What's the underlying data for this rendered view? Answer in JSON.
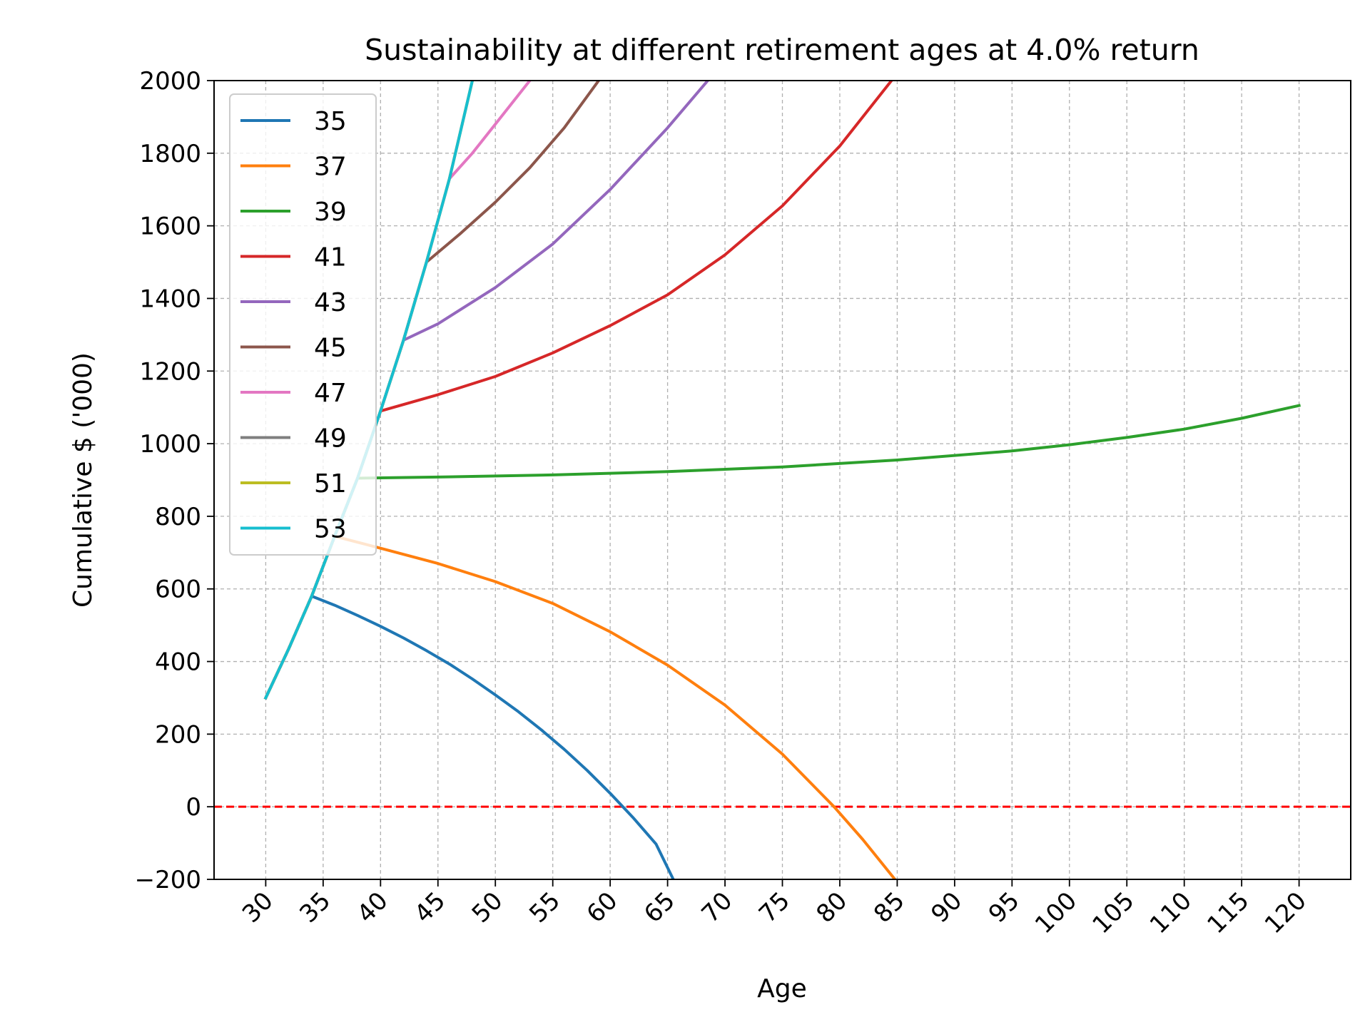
{
  "chart_data": {
    "type": "line",
    "title": "Sustainability at different retirement ages at 4.0% return",
    "xlabel": "Age",
    "ylabel": "Cumulative $ ('000)",
    "xlim": [
      25.5,
      124.5
    ],
    "ylim": [
      -200,
      2000
    ],
    "xticks": [
      30,
      35,
      40,
      45,
      50,
      55,
      60,
      65,
      70,
      75,
      80,
      85,
      90,
      95,
      100,
      105,
      110,
      115,
      120
    ],
    "yticks": [
      -200,
      0,
      200,
      400,
      600,
      800,
      1000,
      1200,
      1400,
      1600,
      1800,
      2000
    ],
    "xtick_labels": [
      "30",
      "35",
      "40",
      "45",
      "50",
      "55",
      "60",
      "65",
      "70",
      "75",
      "80",
      "85",
      "90",
      "95",
      "100",
      "105",
      "110",
      "115",
      "120"
    ],
    "ytick_labels": [
      "−200",
      "0",
      "200",
      "400",
      "600",
      "800",
      "1000",
      "1200",
      "1400",
      "1600",
      "1800",
      "2000"
    ],
    "grid": true,
    "legend_position": "upper-left",
    "reference_line": {
      "y": 0,
      "color": "#ff0000",
      "style": "dashed"
    },
    "series": [
      {
        "name": "35",
        "color": "#1f77b4",
        "x": [
          30,
          32,
          34,
          34,
          36,
          38,
          40,
          42,
          44,
          46,
          48,
          50,
          52,
          54,
          56,
          58,
          60,
          62,
          64,
          65.5
        ],
        "y": [
          300,
          435,
          580,
          580,
          555,
          527,
          497,
          465,
          430,
          393,
          352,
          308,
          262,
          212,
          158,
          100,
          37,
          -30,
          -103,
          -200
        ]
      },
      {
        "name": "37",
        "color": "#ff7f0e",
        "x": [
          30,
          32,
          34,
          36,
          36,
          40,
          45,
          50,
          55,
          60,
          65,
          70,
          75,
          79.5,
          82,
          84.8
        ],
        "y": [
          300,
          435,
          580,
          745,
          745,
          712,
          670,
          620,
          560,
          482,
          390,
          280,
          145,
          0,
          -90,
          -200
        ]
      },
      {
        "name": "39",
        "color": "#2ca02c",
        "x": [
          30,
          32,
          34,
          36,
          38,
          38,
          45,
          55,
          65,
          75,
          85,
          95,
          100,
          105,
          110,
          115,
          120
        ],
        "y": [
          300,
          435,
          580,
          745,
          905,
          905,
          908,
          914,
          923,
          936,
          955,
          980,
          997,
          1017,
          1040,
          1070,
          1105
        ]
      },
      {
        "name": "41",
        "color": "#d62728",
        "x": [
          30,
          32,
          34,
          36,
          38,
          40,
          40,
          45,
          50,
          55,
          60,
          65,
          70,
          75,
          80,
          84.5
        ],
        "y": [
          300,
          435,
          580,
          745,
          905,
          1090,
          1090,
          1135,
          1185,
          1250,
          1325,
          1410,
          1520,
          1655,
          1820,
          2000
        ]
      },
      {
        "name": "43",
        "color": "#9467bd",
        "x": [
          30,
          32,
          34,
          36,
          38,
          40,
          42,
          42,
          45,
          50,
          55,
          60,
          65,
          68.5
        ],
        "y": [
          300,
          435,
          580,
          745,
          905,
          1090,
          1285,
          1285,
          1330,
          1430,
          1550,
          1700,
          1870,
          2000
        ]
      },
      {
        "name": "45",
        "color": "#8c564b",
        "x": [
          30,
          32,
          34,
          36,
          38,
          40,
          42,
          44,
          44,
          47,
          50,
          53,
          56,
          59
        ],
        "y": [
          300,
          435,
          580,
          745,
          905,
          1090,
          1285,
          1500,
          1500,
          1580,
          1665,
          1760,
          1870,
          2000
        ]
      },
      {
        "name": "47",
        "color": "#e377c2",
        "x": [
          30,
          32,
          34,
          36,
          38,
          40,
          42,
          44,
          46,
          46,
          48,
          50,
          52,
          53
        ],
        "y": [
          300,
          435,
          580,
          745,
          905,
          1090,
          1285,
          1500,
          1730,
          1730,
          1800,
          1880,
          1960,
          2000
        ]
      },
      {
        "name": "49",
        "color": "#7f7f7f",
        "x": [
          30,
          32,
          34,
          36,
          38,
          40,
          42,
          44,
          46,
          48
        ],
        "y": [
          300,
          435,
          580,
          745,
          905,
          1090,
          1285,
          1500,
          1730,
          2000
        ]
      },
      {
        "name": "51",
        "color": "#bcbd22",
        "x": [
          30,
          32,
          34,
          36,
          38,
          40,
          42,
          44,
          46,
          48
        ],
        "y": [
          300,
          435,
          580,
          745,
          905,
          1090,
          1285,
          1500,
          1730,
          2000
        ]
      },
      {
        "name": "53",
        "color": "#17becf",
        "x": [
          30,
          32,
          34,
          36,
          38,
          40,
          42,
          44,
          46,
          48
        ],
        "y": [
          300,
          435,
          580,
          745,
          905,
          1090,
          1285,
          1500,
          1730,
          2000
        ]
      }
    ]
  }
}
